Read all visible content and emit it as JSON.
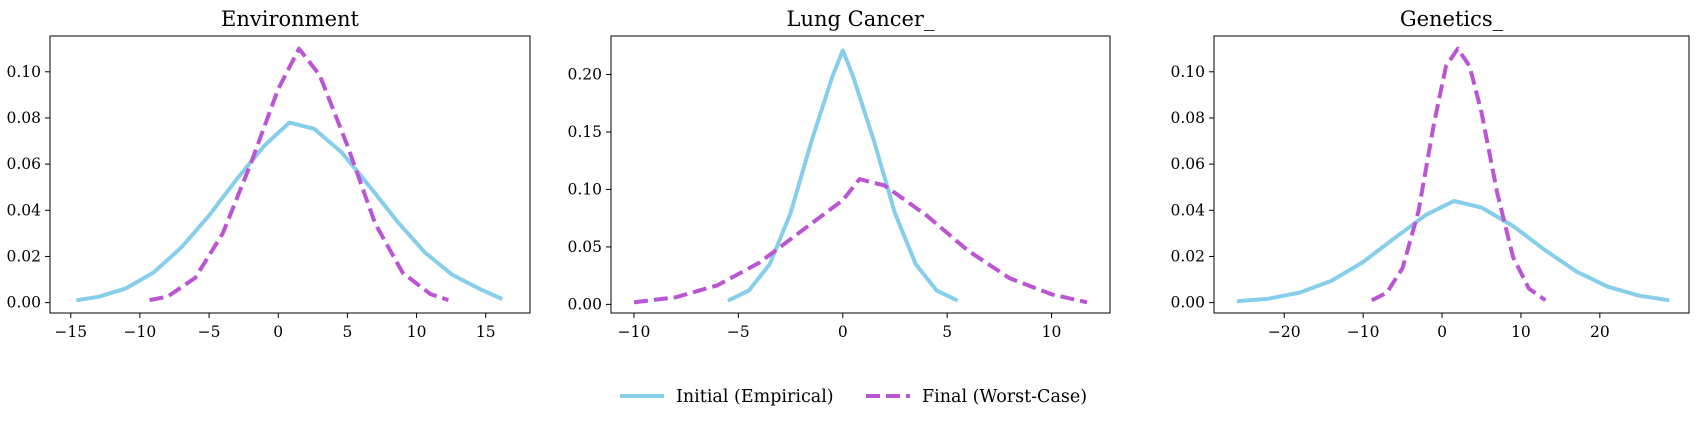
{
  "figure": {
    "legend": {
      "placement": "bottom-center",
      "entries": [
        {
          "key": "initial",
          "label": "Initial (Empirical)",
          "color": "#87CEEB",
          "style": "solid"
        },
        {
          "key": "final",
          "label": "Final (Worst-Case)",
          "color": "#BA55D3",
          "style": "dashed"
        }
      ]
    }
  },
  "chart_data": [
    {
      "type": "line",
      "title": "Environment",
      "xlabel": "",
      "ylabel": "",
      "xlim": [
        -16.5,
        18.2
      ],
      "ylim": [
        -0.0045,
        0.1155
      ],
      "xticks": [
        -15,
        -10,
        -5,
        0,
        5,
        10,
        15
      ],
      "xtick_labels": [
        "−15",
        "−10",
        "−5",
        "0",
        "5",
        "10",
        "15"
      ],
      "yticks": [
        0.0,
        0.02,
        0.04,
        0.06,
        0.08,
        0.1
      ],
      "ytick_labels": [
        "0.00",
        "0.02",
        "0.04",
        "0.06",
        "0.08",
        "0.10"
      ],
      "grid": false,
      "series": [
        {
          "name": "Initial (Empirical)",
          "color": "#87CEEB",
          "dash": "solid",
          "x": [
            -14.6,
            -13,
            -11,
            -9,
            -7,
            -5,
            -3,
            -1,
            0.8,
            2.6,
            4.6,
            6.6,
            8.6,
            10.6,
            12.6,
            14.6,
            16.2
          ],
          "y": [
            0.001,
            0.0025,
            0.0062,
            0.0131,
            0.0239,
            0.0378,
            0.0534,
            0.068,
            0.078,
            0.0753,
            0.065,
            0.0504,
            0.0352,
            0.0217,
            0.012,
            0.0058,
            0.0015
          ]
        },
        {
          "name": "Final (Worst-Case)",
          "color": "#BA55D3",
          "dash": "dashed",
          "x": [
            -9.3,
            -8,
            -6,
            -4,
            -2,
            0,
            1.5,
            3,
            5,
            7,
            9,
            11,
            12.3
          ],
          "y": [
            0.0011,
            0.0026,
            0.0107,
            0.0301,
            0.06,
            0.0925,
            0.11,
            0.0985,
            0.068,
            0.0343,
            0.0129,
            0.0037,
            0.0011
          ]
        }
      ]
    },
    {
      "type": "line",
      "title": "Lung Cancer_",
      "xlabel": "",
      "ylabel": "",
      "xlim": [
        -11.1,
        12.8
      ],
      "ylim": [
        -0.0075,
        0.2335
      ],
      "xticks": [
        -10,
        -5,
        0,
        5,
        10
      ],
      "xtick_labels": [
        "−10",
        "−5",
        "0",
        "5",
        "10"
      ],
      "yticks": [
        0.0,
        0.05,
        0.1,
        0.15,
        0.2
      ],
      "ytick_labels": [
        "0.00",
        "0.05",
        "0.10",
        "0.15",
        "0.20"
      ],
      "grid": false,
      "series": [
        {
          "name": "Initial (Empirical)",
          "color": "#87CEEB",
          "dash": "solid",
          "x": [
            -5.5,
            -4.5,
            -3.5,
            -2.5,
            -1.5,
            -0.5,
            0,
            0.5,
            1.5,
            2.5,
            3.5,
            4.5,
            5.5
          ],
          "y": [
            0.0032,
            0.012,
            0.0349,
            0.0795,
            0.1418,
            0.1981,
            0.221,
            0.1981,
            0.1418,
            0.0795,
            0.0349,
            0.012,
            0.0032
          ]
        },
        {
          "name": "Final (Worst-Case)",
          "color": "#BA55D3",
          "dash": "dashed",
          "x": [
            -10,
            -8,
            -6,
            -4,
            -2,
            0,
            0.8,
            2,
            4,
            6,
            8,
            10,
            11.7
          ],
          "y": [
            0.0018,
            0.0062,
            0.0166,
            0.0362,
            0.0636,
            0.0906,
            0.109,
            0.1034,
            0.0776,
            0.0468,
            0.0227,
            0.0088,
            0.0018
          ]
        }
      ]
    },
    {
      "type": "line",
      "title": "Genetics_",
      "xlabel": "",
      "ylabel": "",
      "xlim": [
        -28.9,
        31.3
      ],
      "ylim": [
        -0.0045,
        0.1155
      ],
      "xticks": [
        -20,
        -10,
        0,
        10,
        20
      ],
      "xtick_labels": [
        "−20",
        "−10",
        "0",
        "10",
        "20"
      ],
      "yticks": [
        0.0,
        0.02,
        0.04,
        0.06,
        0.08,
        0.1
      ],
      "ytick_labels": [
        "0.00",
        "0.02",
        "0.04",
        "0.06",
        "0.08",
        "0.10"
      ],
      "grid": false,
      "series": [
        {
          "name": "Initial (Empirical)",
          "color": "#87CEEB",
          "dash": "solid",
          "x": [
            -26,
            -22,
            -18,
            -14,
            -10,
            -6,
            -2,
            1.5,
            5,
            9,
            13,
            17,
            21,
            25,
            28.8
          ],
          "y": [
            0.0006,
            0.0017,
            0.0044,
            0.0095,
            0.0176,
            0.028,
            0.0381,
            0.044,
            0.0412,
            0.0332,
            0.0229,
            0.0135,
            0.0069,
            0.003,
            0.001
          ]
        },
        {
          "name": "Final (Worst-Case)",
          "color": "#BA55D3",
          "dash": "dashed",
          "x": [
            -8.9,
            -7,
            -5,
            -3,
            -1,
            0.5,
            2,
            3.5,
            5,
            7,
            9,
            11,
            13.1
          ],
          "y": [
            0.001,
            0.0043,
            0.015,
            0.0394,
            0.0779,
            0.1024,
            0.11,
            0.1024,
            0.0824,
            0.0474,
            0.0198,
            0.0061,
            0.001
          ]
        }
      ]
    }
  ]
}
